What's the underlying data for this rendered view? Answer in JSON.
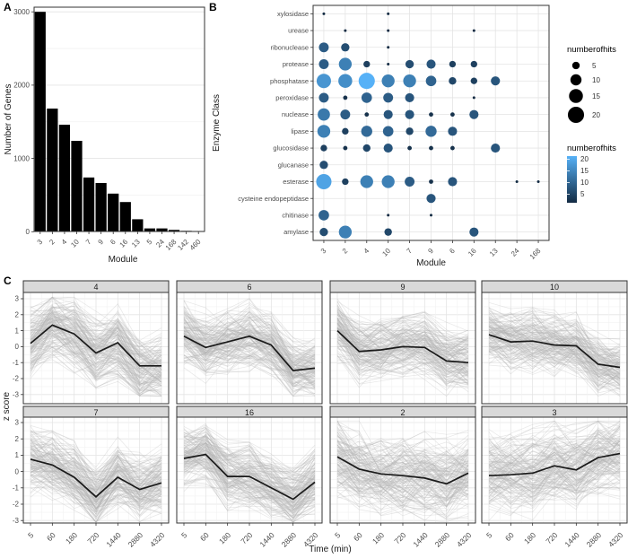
{
  "figure": {
    "panel_a_label": "A",
    "panel_b_label": "B",
    "panel_c_label": "C",
    "background": "#ffffff",
    "grid_major_color": "#e4e4e4",
    "grid_minor_color": "#f2f2f2",
    "panel_border_color": "#333333",
    "axis_text_color": "#4d4d4d",
    "axis_title_color": "#1a1a1a",
    "strip_fill": "#d9d9d9"
  },
  "chart_data": [
    {
      "id": "panel_a",
      "type": "bar",
      "title": "",
      "xlabel": "Module",
      "ylabel": "Number of Genes",
      "categories": [
        "3",
        "2",
        "4",
        "10",
        "7",
        "9",
        "6",
        "16",
        "13",
        "5",
        "24",
        "168",
        "142",
        "460"
      ],
      "values": [
        3000,
        1680,
        1460,
        1240,
        740,
        665,
        520,
        405,
        170,
        45,
        45,
        25,
        12,
        8
      ],
      "ylim": [
        0,
        3000
      ],
      "yticks": [
        0,
        1000,
        2000,
        3000
      ],
      "yticks_minor": [
        500,
        1500,
        2500
      ],
      "bar_color": "#000000",
      "grid": true
    },
    {
      "id": "panel_b",
      "type": "scatter",
      "subtype": "bubble-matrix",
      "xlabel": "Module",
      "ylabel": "Enzyme Class",
      "columns": [
        "3",
        "2",
        "4",
        "10",
        "7",
        "9",
        "6",
        "16",
        "13",
        "24",
        "168"
      ],
      "rows": [
        "xylosidase",
        "urease",
        "ribonuclease",
        "protease",
        "phosphatase",
        "peroxidase",
        "nuclease",
        "lipase",
        "glucosidase",
        "glucanase",
        "esterase",
        "cysteine endopeptidase",
        "chitinase",
        "amylase"
      ],
      "size_legend": {
        "title": "numberofhits",
        "values": [
          5,
          10,
          15,
          20
        ]
      },
      "color_legend": {
        "title": "numberofhits",
        "ticks": [
          20,
          15,
          10,
          5
        ],
        "low": "#132B43",
        "high": "#56B1F7"
      },
      "value_range": [
        1,
        20
      ],
      "points": [
        {
          "row": "xylosidase",
          "col": "3",
          "value": 1
        },
        {
          "row": "xylosidase",
          "col": "10",
          "value": 1
        },
        {
          "row": "urease",
          "col": "2",
          "value": 1
        },
        {
          "row": "urease",
          "col": "10",
          "value": 1
        },
        {
          "row": "urease",
          "col": "16",
          "value": 1
        },
        {
          "row": "ribonuclease",
          "col": "3",
          "value": 8
        },
        {
          "row": "ribonuclease",
          "col": "2",
          "value": 6
        },
        {
          "row": "ribonuclease",
          "col": "10",
          "value": 1
        },
        {
          "row": "protease",
          "col": "3",
          "value": 8
        },
        {
          "row": "protease",
          "col": "2",
          "value": 13
        },
        {
          "row": "protease",
          "col": "4",
          "value": 4
        },
        {
          "row": "protease",
          "col": "10",
          "value": 1
        },
        {
          "row": "protease",
          "col": "7",
          "value": 6
        },
        {
          "row": "protease",
          "col": "9",
          "value": 7
        },
        {
          "row": "protease",
          "col": "6",
          "value": 4
        },
        {
          "row": "protease",
          "col": "16",
          "value": 4
        },
        {
          "row": "phosphatase",
          "col": "3",
          "value": 16
        },
        {
          "row": "phosphatase",
          "col": "2",
          "value": 15
        },
        {
          "row": "phosphatase",
          "col": "4",
          "value": 20
        },
        {
          "row": "phosphatase",
          "col": "10",
          "value": 13
        },
        {
          "row": "phosphatase",
          "col": "7",
          "value": 13
        },
        {
          "row": "phosphatase",
          "col": "9",
          "value": 9
        },
        {
          "row": "phosphatase",
          "col": "6",
          "value": 5
        },
        {
          "row": "phosphatase",
          "col": "16",
          "value": 4
        },
        {
          "row": "phosphatase",
          "col": "13",
          "value": 7
        },
        {
          "row": "peroxidase",
          "col": "3",
          "value": 8
        },
        {
          "row": "peroxidase",
          "col": "2",
          "value": 2
        },
        {
          "row": "peroxidase",
          "col": "4",
          "value": 9
        },
        {
          "row": "peroxidase",
          "col": "10",
          "value": 8
        },
        {
          "row": "peroxidase",
          "col": "7",
          "value": 7
        },
        {
          "row": "peroxidase",
          "col": "16",
          "value": 1
        },
        {
          "row": "nuclease",
          "col": "3",
          "value": 12
        },
        {
          "row": "nuclease",
          "col": "2",
          "value": 8
        },
        {
          "row": "nuclease",
          "col": "4",
          "value": 2
        },
        {
          "row": "nuclease",
          "col": "10",
          "value": 7
        },
        {
          "row": "nuclease",
          "col": "7",
          "value": 7
        },
        {
          "row": "nuclease",
          "col": "9",
          "value": 2
        },
        {
          "row": "nuclease",
          "col": "6",
          "value": 2
        },
        {
          "row": "nuclease",
          "col": "16",
          "value": 7
        },
        {
          "row": "lipase",
          "col": "3",
          "value": 13
        },
        {
          "row": "lipase",
          "col": "2",
          "value": 4
        },
        {
          "row": "lipase",
          "col": "4",
          "value": 10
        },
        {
          "row": "lipase",
          "col": "10",
          "value": 9
        },
        {
          "row": "lipase",
          "col": "7",
          "value": 5
        },
        {
          "row": "lipase",
          "col": "9",
          "value": 10
        },
        {
          "row": "lipase",
          "col": "6",
          "value": 7
        },
        {
          "row": "glucosidase",
          "col": "3",
          "value": 4
        },
        {
          "row": "glucosidase",
          "col": "2",
          "value": 2
        },
        {
          "row": "glucosidase",
          "col": "4",
          "value": 5
        },
        {
          "row": "glucosidase",
          "col": "10",
          "value": 7
        },
        {
          "row": "glucosidase",
          "col": "7",
          "value": 2
        },
        {
          "row": "glucosidase",
          "col": "9",
          "value": 2
        },
        {
          "row": "glucosidase",
          "col": "6",
          "value": 2
        },
        {
          "row": "glucosidase",
          "col": "13",
          "value": 7
        },
        {
          "row": "glucanase",
          "col": "3",
          "value": 6
        },
        {
          "row": "esterase",
          "col": "3",
          "value": 18
        },
        {
          "row": "esterase",
          "col": "2",
          "value": 4
        },
        {
          "row": "esterase",
          "col": "4",
          "value": 13
        },
        {
          "row": "esterase",
          "col": "10",
          "value": 13
        },
        {
          "row": "esterase",
          "col": "7",
          "value": 8
        },
        {
          "row": "esterase",
          "col": "9",
          "value": 2
        },
        {
          "row": "esterase",
          "col": "6",
          "value": 7
        },
        {
          "row": "esterase",
          "col": "24",
          "value": 1
        },
        {
          "row": "esterase",
          "col": "168",
          "value": 1
        },
        {
          "row": "cysteine endopeptidase",
          "col": "9",
          "value": 7
        },
        {
          "row": "chitinase",
          "col": "3",
          "value": 9
        },
        {
          "row": "chitinase",
          "col": "10",
          "value": 1
        },
        {
          "row": "chitinase",
          "col": "9",
          "value": 1
        },
        {
          "row": "amylase",
          "col": "3",
          "value": 6
        },
        {
          "row": "amylase",
          "col": "2",
          "value": 13
        },
        {
          "row": "amylase",
          "col": "10",
          "value": 5
        },
        {
          "row": "amylase",
          "col": "16",
          "value": 7
        }
      ]
    },
    {
      "id": "panel_c",
      "type": "line",
      "subtype": "faceted-profiles",
      "xlabel": "Time (min)",
      "ylabel": "z score",
      "x": [
        "5",
        "60",
        "180",
        "720",
        "1440",
        "2880",
        "4320"
      ],
      "ylim": [
        -3,
        3
      ],
      "yticks": [
        3,
        2,
        1,
        0,
        -1,
        -2,
        -3
      ],
      "line_color": "#1a1a1a",
      "cloud_color": "#b3b3b3",
      "facets": [
        {
          "label": "4",
          "mean": [
            0.2,
            1.35,
            0.8,
            -0.4,
            0.25,
            -1.2,
            -1.2
          ],
          "spread": 1.1
        },
        {
          "label": "6",
          "mean": [
            0.65,
            -0.05,
            0.3,
            0.65,
            0.1,
            -1.5,
            -1.35
          ],
          "spread": 1.0
        },
        {
          "label": "9",
          "mean": [
            1.0,
            -0.3,
            -0.2,
            0.0,
            -0.05,
            -0.9,
            -1.0
          ],
          "spread": 1.0
        },
        {
          "label": "10",
          "mean": [
            0.75,
            0.3,
            0.35,
            0.1,
            0.05,
            -1.1,
            -1.3
          ],
          "spread": 1.0
        },
        {
          "label": "7",
          "mean": [
            0.75,
            0.4,
            -0.35,
            -1.55,
            -0.35,
            -1.1,
            -0.7
          ],
          "spread": 1.05
        },
        {
          "label": "16",
          "mean": [
            0.8,
            1.05,
            -0.3,
            -0.3,
            -1.0,
            -1.7,
            -0.65
          ],
          "spread": 1.0
        },
        {
          "label": "2",
          "mean": [
            0.9,
            0.15,
            -0.15,
            -0.25,
            -0.4,
            -0.75,
            -0.1
          ],
          "spread": 1.25
        },
        {
          "label": "3",
          "mean": [
            -0.25,
            -0.2,
            -0.1,
            0.35,
            0.1,
            0.85,
            1.1
          ],
          "spread": 1.25
        }
      ]
    }
  ]
}
